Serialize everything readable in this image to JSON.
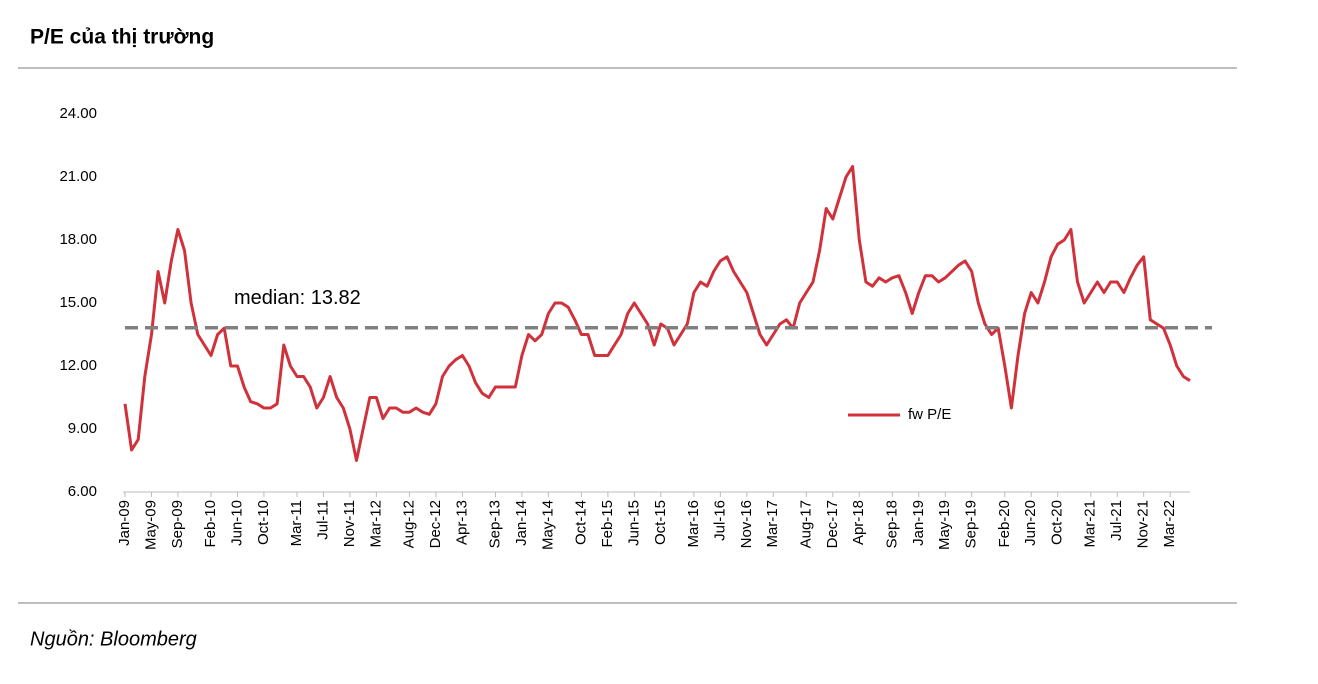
{
  "chart_data": {
    "type": "line",
    "title": "P/E của thị trường",
    "source": "Nguồn: Bloomberg",
    "annotation": "median: 13.82",
    "median": 13.82,
    "grid": false,
    "legend": "right",
    "categories": [
      "Jan-09",
      null,
      null,
      null,
      "May-09",
      null,
      null,
      null,
      "Sep-09",
      null,
      null,
      null,
      null,
      "Feb-10",
      null,
      null,
      null,
      "Jun-10",
      null,
      null,
      null,
      "Oct-10",
      null,
      null,
      null,
      null,
      "Mar-11",
      null,
      null,
      null,
      "Jul-11",
      null,
      null,
      null,
      "Nov-11",
      null,
      null,
      null,
      "Mar-12",
      null,
      null,
      null,
      null,
      "Aug-12",
      null,
      null,
      null,
      "Dec-12",
      null,
      null,
      null,
      "Apr-13",
      null,
      null,
      null,
      null,
      "Sep-13",
      null,
      null,
      null,
      "Jan-14",
      null,
      null,
      null,
      "May-14",
      null,
      null,
      null,
      null,
      "Oct-14",
      null,
      null,
      null,
      "Feb-15",
      null,
      null,
      null,
      "Jun-15",
      null,
      null,
      null,
      "Oct-15",
      null,
      null,
      null,
      null,
      "Mar-16",
      null,
      null,
      null,
      "Jul-16",
      null,
      null,
      null,
      "Nov-16",
      null,
      null,
      null,
      "Mar-17",
      null,
      null,
      null,
      null,
      "Aug-17",
      null,
      null,
      null,
      "Dec-17",
      null,
      null,
      null,
      "Apr-18",
      null,
      null,
      null,
      null,
      "Sep-18",
      null,
      null,
      null,
      "Jan-19",
      null,
      null,
      null,
      "May-19",
      null,
      null,
      null,
      "Sep-19",
      null,
      null,
      null,
      null,
      "Feb-20",
      null,
      null,
      null,
      "Jun-20",
      null,
      null,
      null,
      "Oct-20",
      null,
      null,
      null,
      null,
      "Mar-21",
      null,
      null,
      null,
      "Jul-21",
      null,
      null,
      null,
      "Nov-21",
      null,
      null,
      null,
      "Mar-22",
      null,
      null,
      null
    ],
    "series": [
      {
        "name": "fw P/E",
        "color": "#d0323c",
        "values": [
          10.2,
          8.0,
          8.5,
          11.5,
          13.5,
          16.5,
          15.0,
          17.0,
          18.5,
          17.5,
          15.0,
          13.5,
          13.0,
          12.5,
          13.5,
          13.8,
          12.0,
          12.0,
          11.0,
          10.3,
          10.2,
          10.0,
          10.0,
          10.2,
          13.0,
          12.0,
          11.5,
          11.5,
          11.0,
          10.0,
          10.5,
          11.5,
          10.5,
          10.0,
          9.0,
          7.5,
          9.0,
          10.5,
          10.5,
          9.5,
          10.0,
          10.0,
          9.8,
          9.8,
          10.0,
          9.8,
          9.7,
          10.2,
          11.5,
          12.0,
          12.3,
          12.5,
          12.0,
          11.2,
          10.7,
          10.5,
          11.0,
          11.0,
          11.0,
          11.0,
          12.5,
          13.5,
          13.2,
          13.5,
          14.5,
          15.0,
          15.0,
          14.8,
          14.2,
          13.5,
          13.5,
          12.5,
          12.5,
          12.5,
          13.0,
          13.5,
          14.5,
          15.0,
          14.5,
          14.0,
          13.0,
          14.0,
          13.8,
          13.0,
          13.5,
          14.0,
          15.5,
          16.0,
          15.8,
          16.5,
          17.0,
          17.2,
          16.5,
          16.0,
          15.5,
          14.5,
          13.5,
          13.0,
          13.5,
          14.0,
          14.2,
          13.8,
          15.0,
          15.5,
          16.0,
          17.5,
          19.5,
          19.0,
          20.0,
          21.0,
          21.5,
          18.0,
          16.0,
          15.8,
          16.2,
          16.0,
          16.2,
          16.3,
          15.5,
          14.5,
          15.5,
          16.3,
          16.3,
          16.0,
          16.2,
          16.5,
          16.8,
          17.0,
          16.5,
          15.0,
          14.0,
          13.5,
          13.8,
          12.0,
          10.0,
          12.5,
          14.5,
          15.5,
          15.0,
          16.0,
          17.2,
          17.8,
          18.0,
          18.5,
          16.0,
          15.0,
          15.5,
          16.0,
          15.5,
          16.0,
          16.0,
          15.5,
          16.2,
          16.8,
          17.2,
          14.2,
          14.0,
          13.8,
          13.0,
          12.0,
          11.5,
          11.3
        ]
      }
    ],
    "ylim": [
      6,
      24
    ],
    "yticks": [
      {
        "value": 6,
        "label": "6.00"
      },
      {
        "value": 9,
        "label": "9.00"
      },
      {
        "value": 12,
        "label": "12.00"
      },
      {
        "value": 15,
        "label": "15.00"
      },
      {
        "value": 18,
        "label": "18.00"
      },
      {
        "value": 21,
        "label": "21.00"
      },
      {
        "value": 24,
        "label": "24.00"
      }
    ]
  }
}
